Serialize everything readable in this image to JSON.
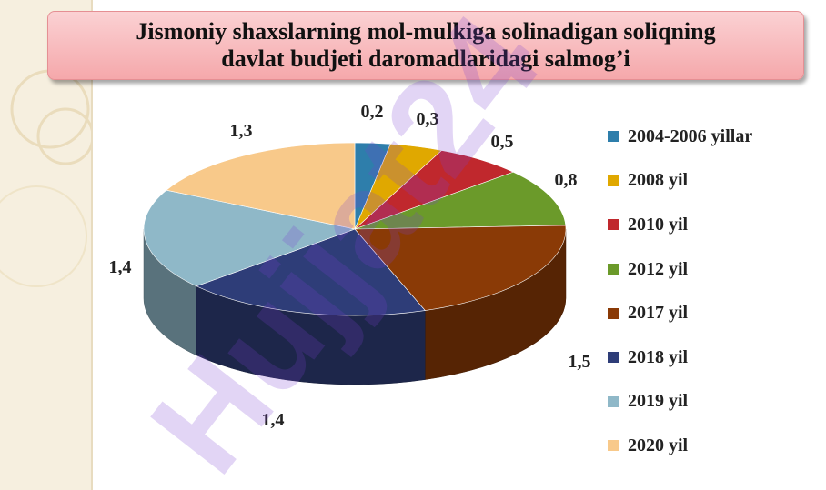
{
  "title": {
    "line1": "Jismoniy shaxslarning mol-mulkiga solinadigan soliqning",
    "line2": "davlat budjeti daromadlaridagi salmog’i"
  },
  "chart_data": {
    "type": "pie",
    "title": "Jismoniy shaxslarning mol-mulkiga solinadigan soliqning davlat budjeti daromadlaridagi salmog’i",
    "categories": [
      "2004-2006 yillar",
      "2008 yil",
      "2010 yil",
      "2012 yil",
      "2017 yil",
      "2018 yil",
      "2019 yil",
      "2020 yil"
    ],
    "values": [
      0.2,
      0.3,
      0.5,
      0.8,
      1.5,
      1.4,
      1.4,
      1.3
    ],
    "value_labels": [
      "0,2",
      "0,3",
      "0,5",
      "0,8",
      "1,5",
      "1,4",
      "1,4",
      "1,3"
    ],
    "colors": [
      "#2e7eab",
      "#e0a800",
      "#c0282d",
      "#6b9a2a",
      "#8a3a06",
      "#2e3d78",
      "#8fb8c8",
      "#f8c98a"
    ],
    "three_d": true,
    "legend_position": "right"
  },
  "watermark": {
    "text": "Hujjat24"
  }
}
